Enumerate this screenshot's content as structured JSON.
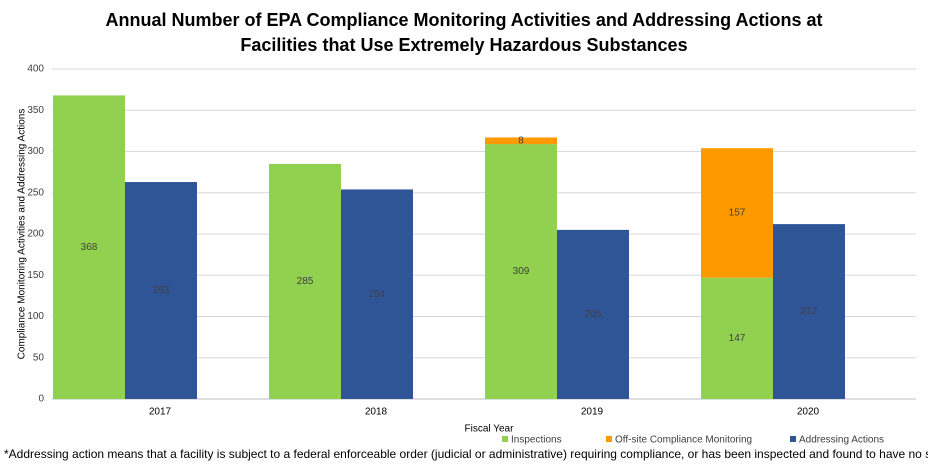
{
  "chart_data": {
    "type": "bar",
    "title": "Annual Number of EPA Compliance Monitoring Activities and Addressing Actions at Facilities that Use Extremely Hazardous Substances",
    "x_label": "Fiscal Year",
    "y_label": "Compliance Monitoring Activities and Addressing Actions",
    "footnote": "*Addressing action means that a facility is subject to a federal enforceable order (judicial or administrative) requiring compliance, or has been inspected and found to have no significant violations.",
    "categories": [
      "2017",
      "2018",
      "2019",
      "2020"
    ],
    "series": [
      {
        "name": "Inspections",
        "color": "#92d050",
        "stack": "activities",
        "values": [
          368,
          285,
          309,
          147
        ]
      },
      {
        "name": "Off-site Compliance Monitoring",
        "color": "#ff9900",
        "stack": "activities",
        "values": [
          null,
          null,
          8,
          157
        ]
      },
      {
        "name": "Addressing Actions",
        "color": "#2f5597",
        "stack": "actions",
        "values": [
          263,
          254,
          205,
          212
        ]
      }
    ],
    "ylim": [
      0,
      400
    ],
    "yticks": [
      0,
      50,
      100,
      150,
      200,
      250,
      300,
      350,
      400
    ],
    "grid": true,
    "legend": "bottom"
  }
}
